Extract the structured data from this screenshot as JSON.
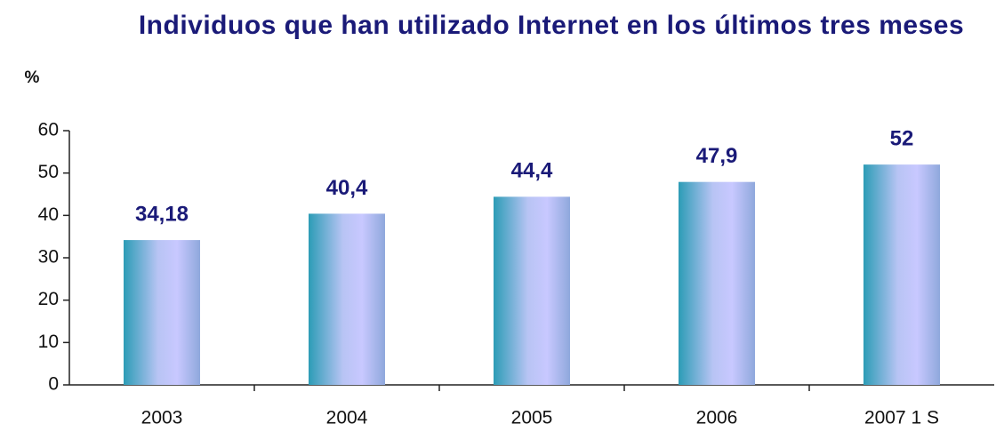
{
  "chart_data": {
    "type": "bar",
    "title": "Individuos que han utilizado Internet en los últimos tres meses",
    "y_label": "%",
    "categories": [
      "2003",
      "2004",
      "2005",
      "2006",
      "2007 1 S"
    ],
    "values": [
      34.18,
      40.4,
      44.4,
      47.9,
      52
    ],
    "value_labels": [
      "34,18",
      "40,4",
      "44,4",
      "47,9",
      "52"
    ],
    "ylim": [
      0,
      60
    ],
    "yticks": [
      0,
      10,
      20,
      30,
      40,
      50,
      60
    ],
    "grid": false
  }
}
